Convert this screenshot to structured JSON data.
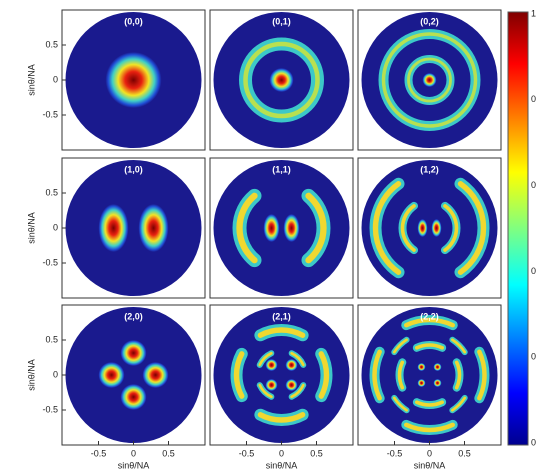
{
  "panels": [
    {
      "title": "(0,0)"
    },
    {
      "title": "(0,1)"
    },
    {
      "title": "(0,2)"
    },
    {
      "title": "(1,0)"
    },
    {
      "title": "(1,1)"
    },
    {
      "title": "(1,2)"
    },
    {
      "title": "(2,0)"
    },
    {
      "title": "(2,1)"
    },
    {
      "title": "(2,2)"
    }
  ],
  "axes": {
    "x_label": "sinθ/NA",
    "y_label": "sinθ/NA",
    "xticks": [
      -0.5,
      0,
      0.5
    ],
    "yticks": [
      0.5,
      0,
      -0.5
    ]
  },
  "colorbar": {
    "labels": [
      "1",
      "0",
      "0",
      "0",
      "0",
      "0"
    ]
  }
}
